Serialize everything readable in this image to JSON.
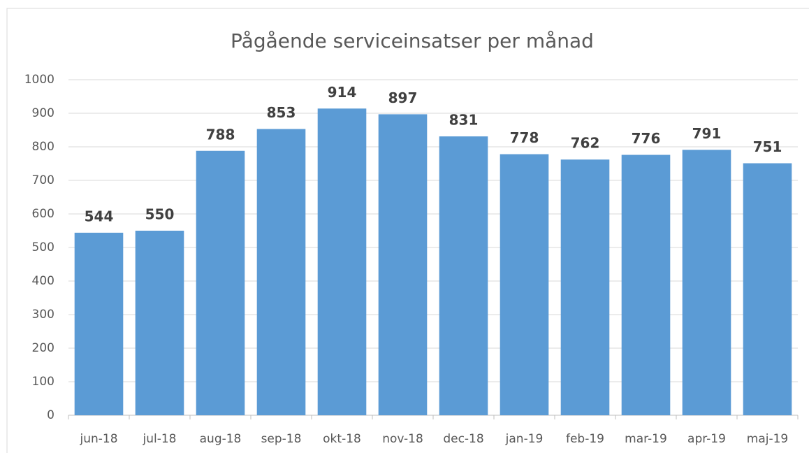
{
  "chart_data": {
    "type": "bar",
    "title": "Pågående serviceinsatser per månad",
    "categories": [
      "jun-18",
      "jul-18",
      "aug-18",
      "sep-18",
      "okt-18",
      "nov-18",
      "dec-18",
      "jan-19",
      "feb-19",
      "mar-19",
      "apr-19",
      "maj-19"
    ],
    "values": [
      544,
      550,
      788,
      853,
      914,
      897,
      831,
      778,
      762,
      776,
      791,
      751
    ],
    "color": "#5b9bd5",
    "ylim": [
      0,
      1000
    ],
    "yticks": [
      0,
      100,
      200,
      300,
      400,
      500,
      600,
      700,
      800,
      900,
      1000
    ],
    "grid": true
  }
}
